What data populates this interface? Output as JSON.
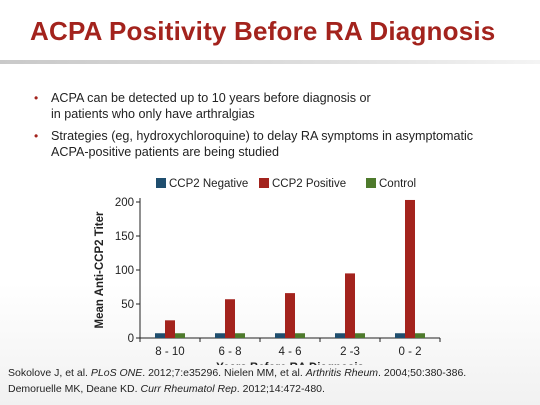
{
  "slide": {
    "title": "ACPA Positivity Before RA Diagnosis",
    "bullets": [
      {
        "lines": [
          "ACPA can be detected up to 10 years before diagnosis or",
          "in patients who only have arthralgias"
        ]
      },
      {
        "lines": [
          "Strategies (eg, hydroxychloroquine) to delay RA symptoms in asymptomatic",
          "ACPA-positive patients are being studied"
        ]
      }
    ]
  },
  "chart_data": {
    "type": "bar",
    "title": "",
    "xlabel": "Years Before RA Diagnosis",
    "ylabel": "Mean Anti-CCP2 Titer",
    "categories": [
      "8 - 10",
      "6 - 8",
      "4 - 6",
      "2 -3",
      "0 - 2"
    ],
    "ylim": [
      0,
      200
    ],
    "yticks": [
      0,
      50,
      100,
      150,
      200
    ],
    "legend_position": "top",
    "series": [
      {
        "name": "CCP2 Negative",
        "color": "#1f4e6e",
        "values": [
          7,
          7,
          7,
          7,
          7
        ]
      },
      {
        "name": "CCP2 Positive",
        "color": "#a3231d",
        "values": [
          26,
          57,
          66,
          95,
          203
        ]
      },
      {
        "name": "Control",
        "color": "#4e7a2c",
        "values": [
          7,
          7,
          7,
          7,
          7
        ]
      }
    ]
  },
  "references": {
    "line1": [
      {
        "text": "Sokolove J, et al. ",
        "italic": false
      },
      {
        "text": "PLoS ONE",
        "italic": true
      },
      {
        "text": ". 2012;7:e35296.  Nielen MM, et al. ",
        "italic": false
      },
      {
        "text": "Arthritis Rheum",
        "italic": true
      },
      {
        "text": ".  2004;50:380-386.",
        "italic": false
      }
    ],
    "line2": [
      {
        "text": "Demoruelle MK, Deane KD. ",
        "italic": false
      },
      {
        "text": "Curr Rheumatol Rep",
        "italic": true
      },
      {
        "text": ". 2012;14:472-480.",
        "italic": false
      }
    ]
  }
}
